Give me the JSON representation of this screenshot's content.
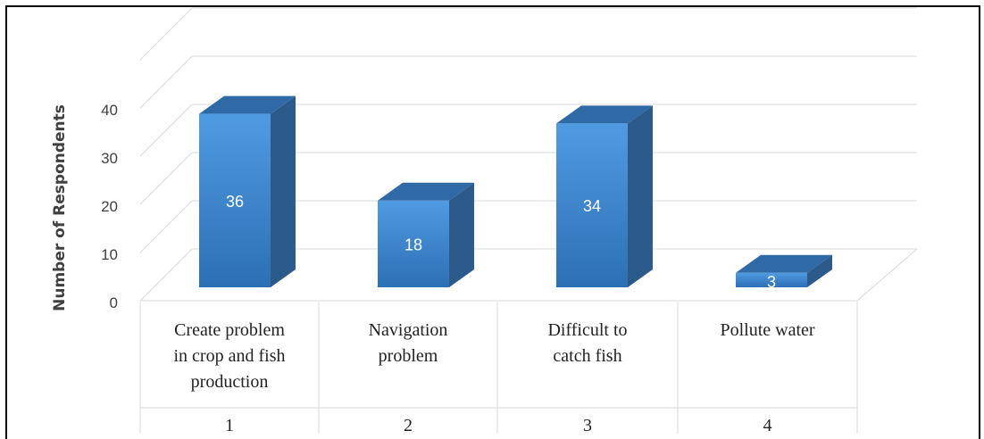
{
  "chart_data": {
    "type": "bar",
    "ylabel": "Number of Respondents",
    "ylim": [
      0,
      40
    ],
    "yticks": [
      "0",
      "10",
      "20",
      "30",
      "40"
    ],
    "categories": [
      {
        "lines": [
          "Create problem",
          "in crop and fish",
          "production"
        ],
        "index": "1"
      },
      {
        "lines": [
          "Navigation",
          "problem"
        ],
        "index": "2"
      },
      {
        "lines": [
          "Difficult to",
          "catch fish"
        ],
        "index": "3"
      },
      {
        "lines": [
          "Pollute water"
        ],
        "index": "4"
      }
    ],
    "values": [
      36,
      18,
      34,
      3
    ],
    "data_labels": [
      "36",
      "18",
      "34",
      "3"
    ],
    "grid": true,
    "legend": "none",
    "colors": {
      "front": "#4a93d8",
      "side": "#2c5a8a",
      "top": "#2f6aa6",
      "grid": "#d9d9d9"
    }
  }
}
